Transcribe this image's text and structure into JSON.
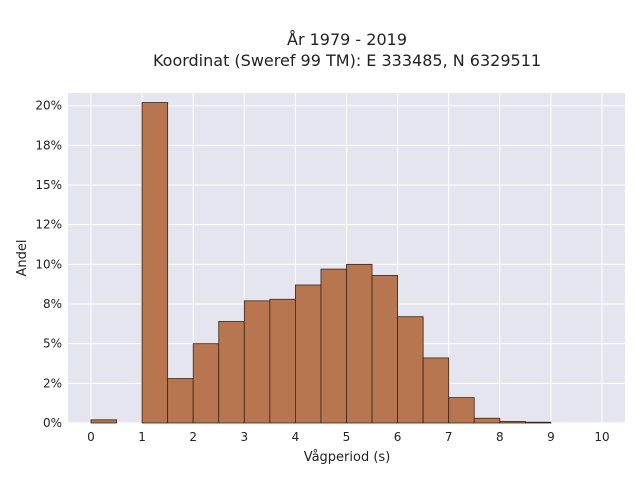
{
  "chart_data": {
    "type": "bar",
    "title_line1": "År 1979 - 2019",
    "title_line2": "Koordinat (Sweref 99 TM): E 333485, N 6329511",
    "xlabel": "Vågperiod (s)",
    "ylabel": "Andel",
    "bin_width": 0.5,
    "bins": [
      {
        "x0": 0.0,
        "value": 0.2
      },
      {
        "x0": 0.5,
        "value": 0.0
      },
      {
        "x0": 1.0,
        "value": 20.2
      },
      {
        "x0": 1.5,
        "value": 2.8
      },
      {
        "x0": 2.0,
        "value": 5.0
      },
      {
        "x0": 2.5,
        "value": 6.4
      },
      {
        "x0": 3.0,
        "value": 7.7
      },
      {
        "x0": 3.5,
        "value": 7.8
      },
      {
        "x0": 4.0,
        "value": 8.7
      },
      {
        "x0": 4.5,
        "value": 9.7
      },
      {
        "x0": 5.0,
        "value": 10.0
      },
      {
        "x0": 5.5,
        "value": 9.3
      },
      {
        "x0": 6.0,
        "value": 6.7
      },
      {
        "x0": 6.5,
        "value": 4.1
      },
      {
        "x0": 7.0,
        "value": 1.6
      },
      {
        "x0": 7.5,
        "value": 0.3
      },
      {
        "x0": 8.0,
        "value": 0.1
      },
      {
        "x0": 8.5,
        "value": 0.05
      },
      {
        "x0": 9.0,
        "value": 0.0
      },
      {
        "x0": 9.5,
        "value": 0.0
      }
    ],
    "xlim": [
      -0.45,
      10.45
    ],
    "ylim": [
      0,
      20.8
    ],
    "x_ticks": [
      0,
      1,
      2,
      3,
      4,
      5,
      6,
      7,
      8,
      9,
      10
    ],
    "x_tick_labels": [
      "0",
      "1",
      "2",
      "3",
      "4",
      "5",
      "6",
      "7",
      "8",
      "9",
      "10"
    ],
    "y_ticks": [
      0,
      2.5,
      5,
      7.5,
      10,
      12.5,
      15,
      17.5,
      20
    ],
    "y_tick_labels": [
      "0%",
      "2%",
      "5%",
      "8%",
      "10%",
      "12%",
      "15%",
      "18%",
      "20%"
    ],
    "grid": true,
    "colors": {
      "bar_fill": "#b87650",
      "bar_edge": "#3a2418",
      "plot_background": "#e5e5ef",
      "grid": "#ffffff"
    }
  }
}
